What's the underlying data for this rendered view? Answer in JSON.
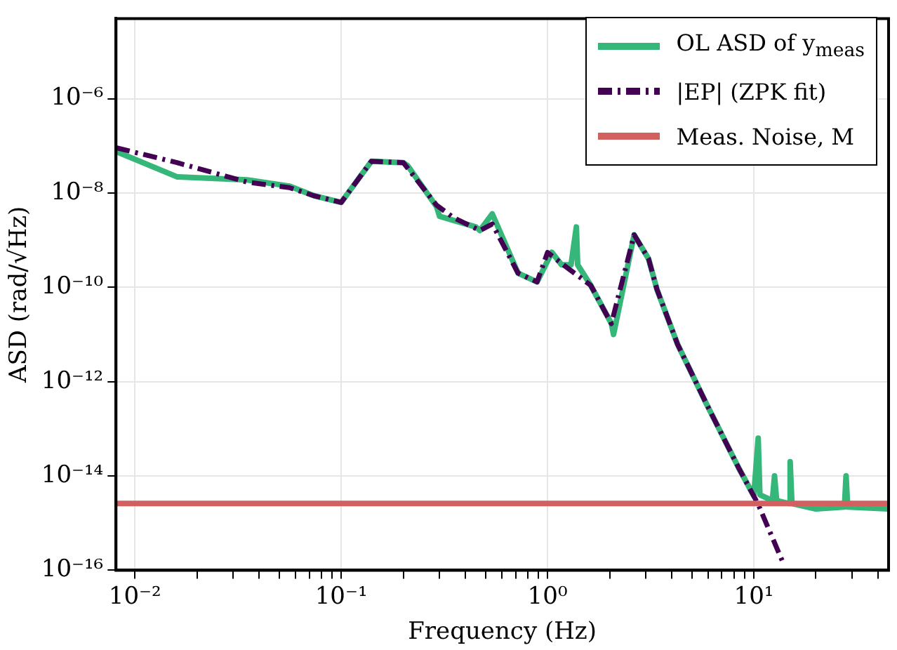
{
  "chart_data": {
    "type": "line",
    "xlabel": "Frequency (Hz)",
    "ylabel": "ASD (rad/√Hz)",
    "log": "xy",
    "grid": true,
    "legend": "top right",
    "marker": "none",
    "xlim": [
      0.0081,
      45
    ],
    "ylim": [
      1e-16,
      5e-05
    ],
    "xticks": [
      {
        "value": 0.01,
        "label": "10⁻²"
      },
      {
        "value": 0.02,
        "label": null
      },
      {
        "value": 0.03,
        "label": null
      },
      {
        "value": 0.04,
        "label": null
      },
      {
        "value": 0.05,
        "label": null
      },
      {
        "value": 0.06,
        "label": null
      },
      {
        "value": 0.07,
        "label": null
      },
      {
        "value": 0.08,
        "label": null
      },
      {
        "value": 0.09,
        "label": null
      },
      {
        "value": 0.1,
        "label": "10⁻¹"
      },
      {
        "value": 0.2,
        "label": null
      },
      {
        "value": 0.3,
        "label": null
      },
      {
        "value": 0.4,
        "label": null
      },
      {
        "value": 0.5,
        "label": null
      },
      {
        "value": 0.6,
        "label": null
      },
      {
        "value": 0.7,
        "label": null
      },
      {
        "value": 0.8,
        "label": null
      },
      {
        "value": 0.9,
        "label": null
      },
      {
        "value": 1,
        "label": "10⁰"
      },
      {
        "value": 2,
        "label": null
      },
      {
        "value": 3,
        "label": null
      },
      {
        "value": 4,
        "label": null
      },
      {
        "value": 5,
        "label": null
      },
      {
        "value": 6,
        "label": null
      },
      {
        "value": 7,
        "label": null
      },
      {
        "value": 8,
        "label": null
      },
      {
        "value": 9,
        "label": null
      },
      {
        "value": 10,
        "label": "10¹"
      },
      {
        "value": 20,
        "label": null
      },
      {
        "value": 30,
        "label": null
      },
      {
        "value": 40,
        "label": null
      }
    ],
    "yticks": [
      {
        "value": 1e-16,
        "label": "10⁻¹⁶"
      },
      {
        "value": 1e-14,
        "label": "10⁻¹⁴"
      },
      {
        "value": 1e-12,
        "label": "10⁻¹²"
      },
      {
        "value": 1e-10,
        "label": "10⁻¹⁰"
      },
      {
        "value": 1e-08,
        "label": "10⁻⁸"
      },
      {
        "value": 1e-06,
        "label": "10⁻⁶"
      }
    ],
    "series": [
      {
        "name": "OL ASD of y$_{meas}$",
        "color": "#35b779",
        "line_style": "solid",
        "x": [
          0.0081,
          0.016,
          0.035,
          0.056,
          0.074,
          0.1,
          0.14,
          0.2,
          0.21,
          0.29,
          0.3,
          0.45,
          0.47,
          0.54,
          0.72,
          0.89,
          1.05,
          1.17,
          1.3,
          1.38,
          1.4,
          1.62,
          2.04,
          2.09,
          2.63,
          3.09,
          3.39,
          4.27,
          5.89,
          8.5,
          10,
          10.5,
          10.7,
          12.3,
          12.6,
          12.9,
          14.8,
          15,
          15.3,
          20,
          27.5,
          28,
          28.5,
          45
        ],
        "values": [
          7.6e-08,
          2.2e-08,
          1.9e-08,
          1.4e-08,
          8.7e-09,
          6.3e-09,
          4.7e-08,
          4.4e-08,
          3.8e-08,
          5.1e-09,
          3.2e-09,
          1.9e-09,
          1.6e-09,
          3.6e-09,
          2e-10,
          1.3e-10,
          5.5e-10,
          3e-10,
          3e-10,
          1.9e-09,
          3e-10,
          1.1e-10,
          1.7e-11,
          1e-11,
          1.3e-09,
          4e-10,
          9.1e-11,
          6.2e-12,
          3.4e-13,
          1.4e-14,
          3.8e-15,
          6.3e-14,
          4e-15,
          3e-15,
          1e-14,
          3e-15,
          2.6e-15,
          2e-14,
          2.6e-15,
          2e-15,
          2.2e-15,
          1e-14,
          2.2e-15,
          2e-15
        ]
      },
      {
        "name": "|EP| (ZPK fit)",
        "color": "#440154",
        "line_style": "dashed",
        "x": [
          0.0081,
          0.016,
          0.035,
          0.056,
          0.074,
          0.1,
          0.14,
          0.2,
          0.29,
          0.35,
          0.47,
          0.54,
          0.72,
          0.89,
          1,
          1.17,
          1.62,
          2.04,
          2.63,
          3.09,
          3.39,
          4.27,
          5.89,
          8.5,
          10.5,
          14
        ],
        "values": [
          9.1e-08,
          4.4e-08,
          1.7e-08,
          1.3e-08,
          8.7e-09,
          6.3e-09,
          4.7e-08,
          4.4e-08,
          5.5e-09,
          3e-09,
          1.6e-09,
          2.2e-09,
          2e-10,
          1.3e-10,
          5.5e-10,
          3.2e-10,
          1.1e-10,
          1.7e-11,
          1.3e-09,
          4e-10,
          9.1e-11,
          6.2e-12,
          3.4e-13,
          1.4e-14,
          2.5e-15,
          1.3e-16
        ]
      },
      {
        "name": "Meas. Noise, M",
        "color": "#d1605e",
        "line_style": "solid",
        "x": [
          0.0081,
          45
        ],
        "values": [
          2.6e-15,
          2.6e-15
        ]
      }
    ]
  }
}
